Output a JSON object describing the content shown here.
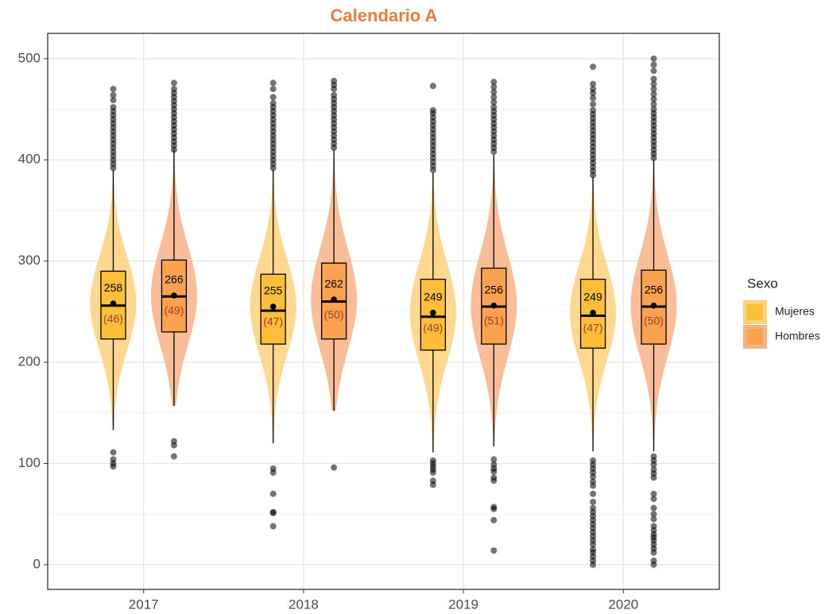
{
  "chart_data": {
    "type": "violin-box",
    "title": "Calendario A",
    "categories": [
      "2017",
      "2018",
      "2019",
      "2020"
    ],
    "ylim": [
      -24.4,
      525
    ],
    "yticks": [
      0,
      100,
      200,
      300,
      400,
      500
    ],
    "yminor_ticks": [
      50,
      150,
      250,
      350,
      450
    ],
    "grid": true,
    "legend_title": "Sexo",
    "legend_position": "right",
    "series": [
      {
        "name": "Mujeres",
        "color": "#fdbf3a",
        "violin_color": "#fed17a",
        "whisker_low": [
          133,
          120,
          111,
          112
        ],
        "q1": [
          223,
          218,
          212,
          214
        ],
        "median": [
          256,
          251,
          245,
          246
        ],
        "q3": [
          290,
          287,
          282,
          282
        ],
        "whisker_high": [
          390,
          390,
          387,
          383
        ],
        "mean": [
          258,
          255,
          249,
          249
        ],
        "sd": [
          46,
          47,
          49,
          47
        ],
        "sd_labels": [
          "(46)",
          "(47)",
          "(49)",
          "(47)"
        ],
        "outliers": [
          [
            111,
            104,
            100,
            97,
            392,
            396,
            400,
            404,
            408,
            412,
            416,
            420,
            424,
            428,
            432,
            436,
            440,
            444,
            448,
            452,
            459,
            464,
            470
          ],
          [
            95,
            91,
            70,
            52,
            51,
            38,
            392,
            396,
            400,
            404,
            408,
            412,
            416,
            420,
            424,
            428,
            432,
            436,
            440,
            444,
            448,
            452,
            456,
            462,
            470,
            476
          ],
          [
            103,
            100,
            97,
            94,
            91,
            83,
            79,
            390,
            394,
            398,
            402,
            406,
            410,
            414,
            418,
            422,
            426,
            430,
            434,
            438,
            442,
            446,
            449,
            473
          ],
          [
            103,
            99,
            95,
            91,
            87,
            82,
            78,
            70,
            62,
            56,
            52,
            48,
            44,
            40,
            36,
            32,
            28,
            24,
            20,
            15,
            12,
            8,
            4,
            0,
            385,
            389,
            393,
            397,
            401,
            405,
            409,
            413,
            417,
            421,
            425,
            429,
            433,
            437,
            441,
            445,
            449,
            455,
            461,
            466,
            470,
            475,
            492
          ]
        ]
      },
      {
        "name": "Hombres",
        "color": "#fba24e",
        "violin_color": "#f8b385",
        "whisker_low": [
          157,
          152,
          117,
          112
        ],
        "q1": [
          230,
          223,
          218,
          218
        ],
        "median": [
          265,
          260,
          255,
          255
        ],
        "q3": [
          301,
          298,
          293,
          291
        ],
        "whisker_high": [
          410,
          410,
          405,
          400
        ],
        "mean": [
          266,
          262,
          256,
          256
        ],
        "sd": [
          49,
          50,
          51,
          50
        ],
        "sd_labels": [
          "(49)",
          "(50)",
          "(51)",
          "(50)"
        ],
        "outliers": [
          [
            122,
            118,
            107,
            410,
            414,
            418,
            422,
            426,
            430,
            434,
            438,
            442,
            446,
            450,
            454,
            458,
            462,
            466,
            470,
            476
          ],
          [
            96,
            412,
            416,
            420,
            424,
            428,
            432,
            436,
            440,
            444,
            448,
            452,
            456,
            460,
            464,
            470,
            474,
            478
          ],
          [
            104,
            99,
            95,
            92,
            86,
            83,
            57,
            55,
            44,
            14,
            408,
            412,
            416,
            420,
            424,
            428,
            432,
            436,
            440,
            444,
            448,
            452,
            457,
            462,
            467,
            472,
            477
          ],
          [
            107,
            103,
            99,
            94,
            90,
            86,
            70,
            65,
            56,
            50,
            45,
            38,
            34,
            30,
            27,
            24,
            20,
            16,
            12,
            4,
            0,
            402,
            406,
            410,
            414,
            418,
            422,
            426,
            430,
            434,
            438,
            442,
            446,
            450,
            455,
            460,
            465,
            470,
            475,
            480,
            488,
            494,
            500
          ]
        ]
      }
    ]
  }
}
